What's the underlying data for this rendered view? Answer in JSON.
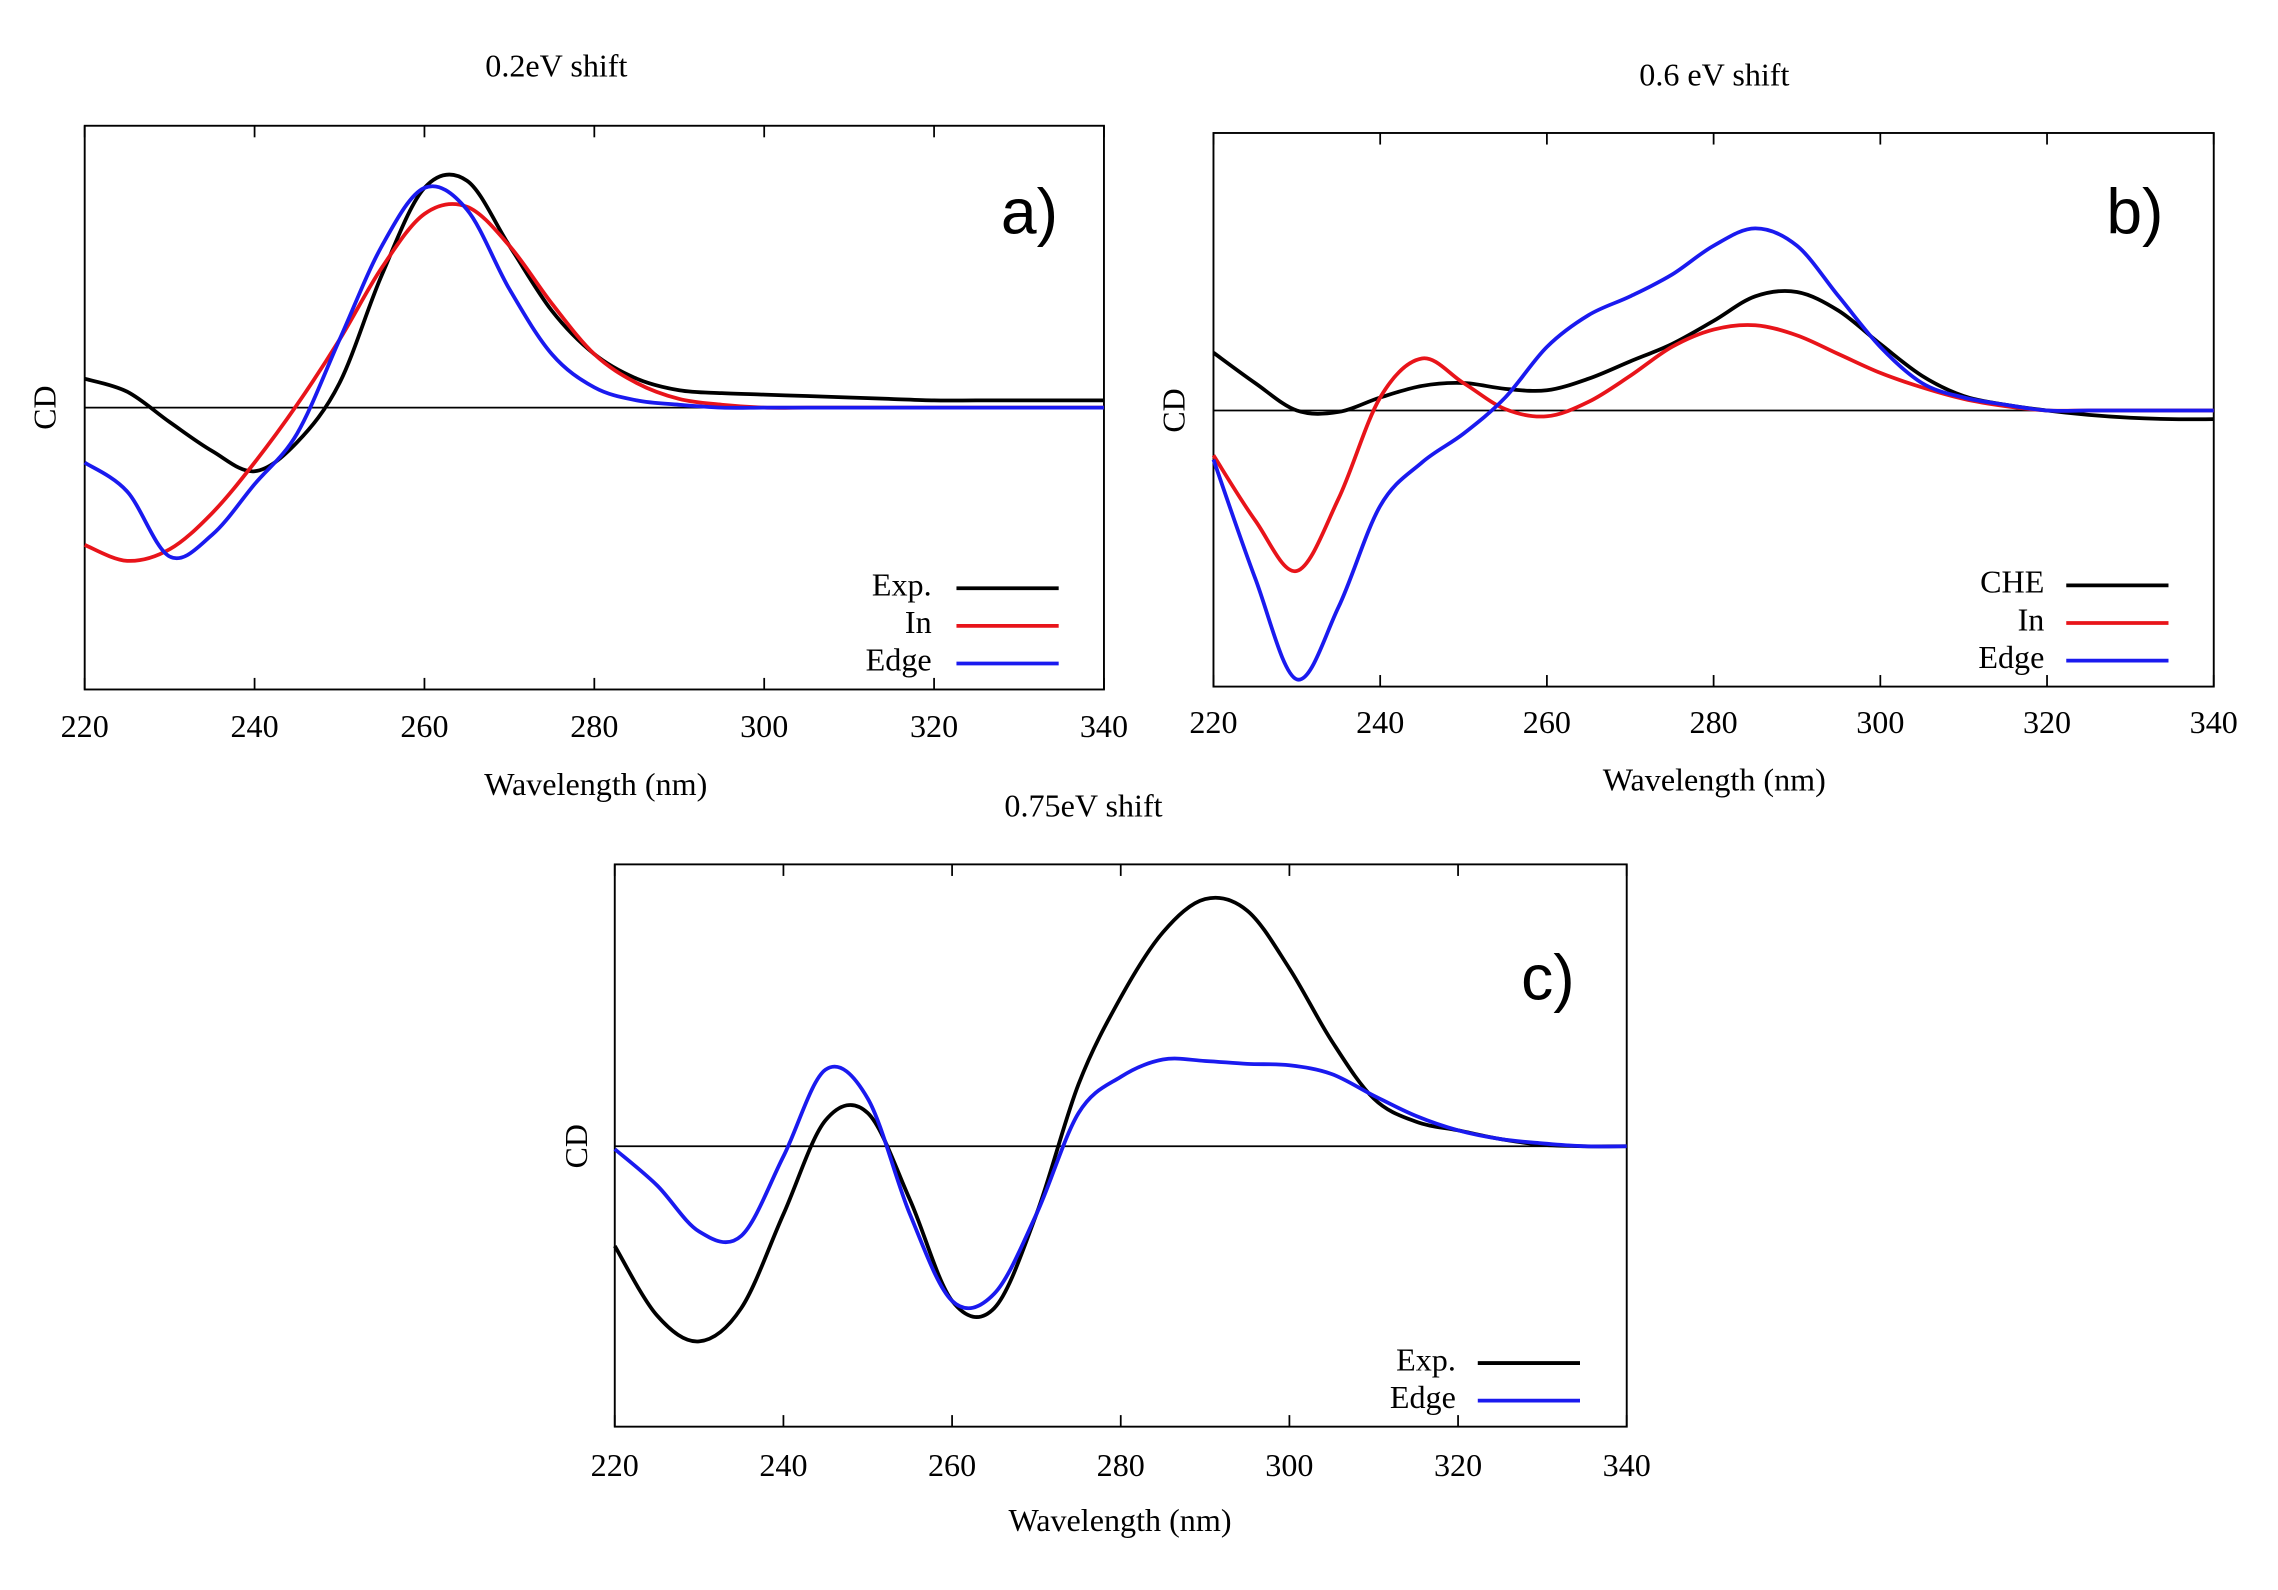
{
  "chart_data": [
    {
      "type": "line",
      "title": "0.2eV shift",
      "panel_label": "a)",
      "xlabel": "Wavelength (nm)",
      "ylabel": "CD",
      "x": [
        220,
        225,
        230,
        235,
        240,
        245,
        250,
        255,
        260,
        265,
        270,
        275,
        280,
        285,
        290,
        295,
        300,
        305,
        310,
        315,
        320,
        325,
        330,
        335,
        340
      ],
      "xlim": [
        220,
        340
      ],
      "xticks": [
        220,
        240,
        260,
        280,
        300,
        320,
        340
      ],
      "ylim": [
        -1.95,
        1.95
      ],
      "legend": "lower right",
      "series": [
        {
          "name": "Exp.",
          "color": "#000000",
          "values": [
            0.2,
            0.11,
            -0.1,
            -0.3,
            -0.44,
            -0.24,
            0.17,
            0.92,
            1.52,
            1.57,
            1.12,
            0.67,
            0.37,
            0.2,
            0.12,
            0.1,
            0.09,
            0.08,
            0.07,
            0.06,
            0.05,
            0.05,
            0.05,
            0.05,
            0.05
          ]
        },
        {
          "name": "In",
          "color": "#e8141a",
          "values": [
            -0.95,
            -1.06,
            -0.98,
            -0.73,
            -0.38,
            0.02,
            0.47,
            0.97,
            1.34,
            1.39,
            1.12,
            0.72,
            0.37,
            0.17,
            0.06,
            0.02,
            0,
            0,
            0,
            0,
            0,
            0,
            0,
            0,
            0
          ]
        },
        {
          "name": "Edge",
          "color": "#1a1aef",
          "values": [
            -0.38,
            -0.58,
            -1.03,
            -0.88,
            -0.53,
            -0.18,
            0.47,
            1.12,
            1.52,
            1.37,
            0.82,
            0.37,
            0.14,
            0.05,
            0.02,
            0,
            0,
            0,
            0,
            0,
            0,
            0,
            0,
            0,
            0
          ]
        }
      ]
    },
    {
      "type": "line",
      "title": "0.6 eV shift",
      "panel_label": "b)",
      "xlabel": "Wavelength (nm)",
      "ylabel": "CD",
      "x": [
        220,
        225,
        230,
        235,
        240,
        245,
        250,
        255,
        260,
        265,
        270,
        275,
        280,
        285,
        290,
        295,
        300,
        305,
        310,
        315,
        320,
        325,
        330,
        335,
        340
      ],
      "xlim": [
        220,
        340
      ],
      "xticks": [
        220,
        240,
        260,
        280,
        300,
        320,
        340
      ],
      "ylim": [
        -1.91,
        1.92
      ],
      "legend": "lower right",
      "series": [
        {
          "name": "CHE",
          "color": "#000000",
          "values": [
            0.4,
            0.19,
            0,
            -0.01,
            0.09,
            0.17,
            0.19,
            0.15,
            0.14,
            0.22,
            0.34,
            0.46,
            0.62,
            0.79,
            0.82,
            0.69,
            0.46,
            0.24,
            0.1,
            0.04,
            0,
            -0.03,
            -0.05,
            -0.06,
            -0.06
          ]
        },
        {
          "name": "In",
          "color": "#e8141a",
          "values": [
            -0.31,
            -0.76,
            -1.11,
            -0.61,
            0.09,
            0.36,
            0.19,
            0.01,
            -0.04,
            0.06,
            0.24,
            0.44,
            0.56,
            0.59,
            0.52,
            0.39,
            0.26,
            0.16,
            0.08,
            0.03,
            0,
            0,
            0,
            0,
            0
          ]
        },
        {
          "name": "Edge",
          "color": "#1a1aef",
          "values": [
            -0.34,
            -1.16,
            -1.86,
            -1.36,
            -0.66,
            -0.36,
            -0.16,
            0.09,
            0.44,
            0.66,
            0.79,
            0.94,
            1.14,
            1.26,
            1.14,
            0.79,
            0.44,
            0.19,
            0.09,
            0.04,
            0,
            0,
            0,
            0,
            0
          ]
        }
      ]
    },
    {
      "type": "line",
      "title": "0.75eV shift",
      "panel_label": "c)",
      "xlabel": "Wavelength (nm)",
      "ylabel": "CD",
      "x": [
        220,
        225,
        230,
        235,
        240,
        245,
        250,
        255,
        260,
        265,
        270,
        275,
        280,
        285,
        290,
        295,
        300,
        305,
        310,
        315,
        320,
        325,
        330,
        335,
        340
      ],
      "xlim": [
        220,
        340
      ],
      "xticks": [
        220,
        240,
        260,
        280,
        300,
        320,
        340
      ],
      "ylim": [
        -1.94,
        1.95
      ],
      "legend": "lower right",
      "series": [
        {
          "name": "Exp.",
          "color": "#000000",
          "values": [
            -0.69,
            -1.17,
            -1.35,
            -1.12,
            -0.47,
            0.18,
            0.23,
            -0.37,
            -1.07,
            -1.12,
            -0.47,
            0.43,
            1.03,
            1.48,
            1.71,
            1.63,
            1.23,
            0.73,
            0.33,
            0.17,
            0.11,
            0.05,
            0.01,
            0,
            0
          ]
        },
        {
          "name": "Edge",
          "color": "#1a1aef",
          "values": [
            -0.02,
            -0.27,
            -0.59,
            -0.62,
            -0.07,
            0.53,
            0.33,
            -0.47,
            -1.07,
            -1.02,
            -0.47,
            0.23,
            0.48,
            0.6,
            0.59,
            0.57,
            0.56,
            0.5,
            0.35,
            0.21,
            0.11,
            0.05,
            0.02,
            0,
            0
          ]
        }
      ]
    }
  ]
}
